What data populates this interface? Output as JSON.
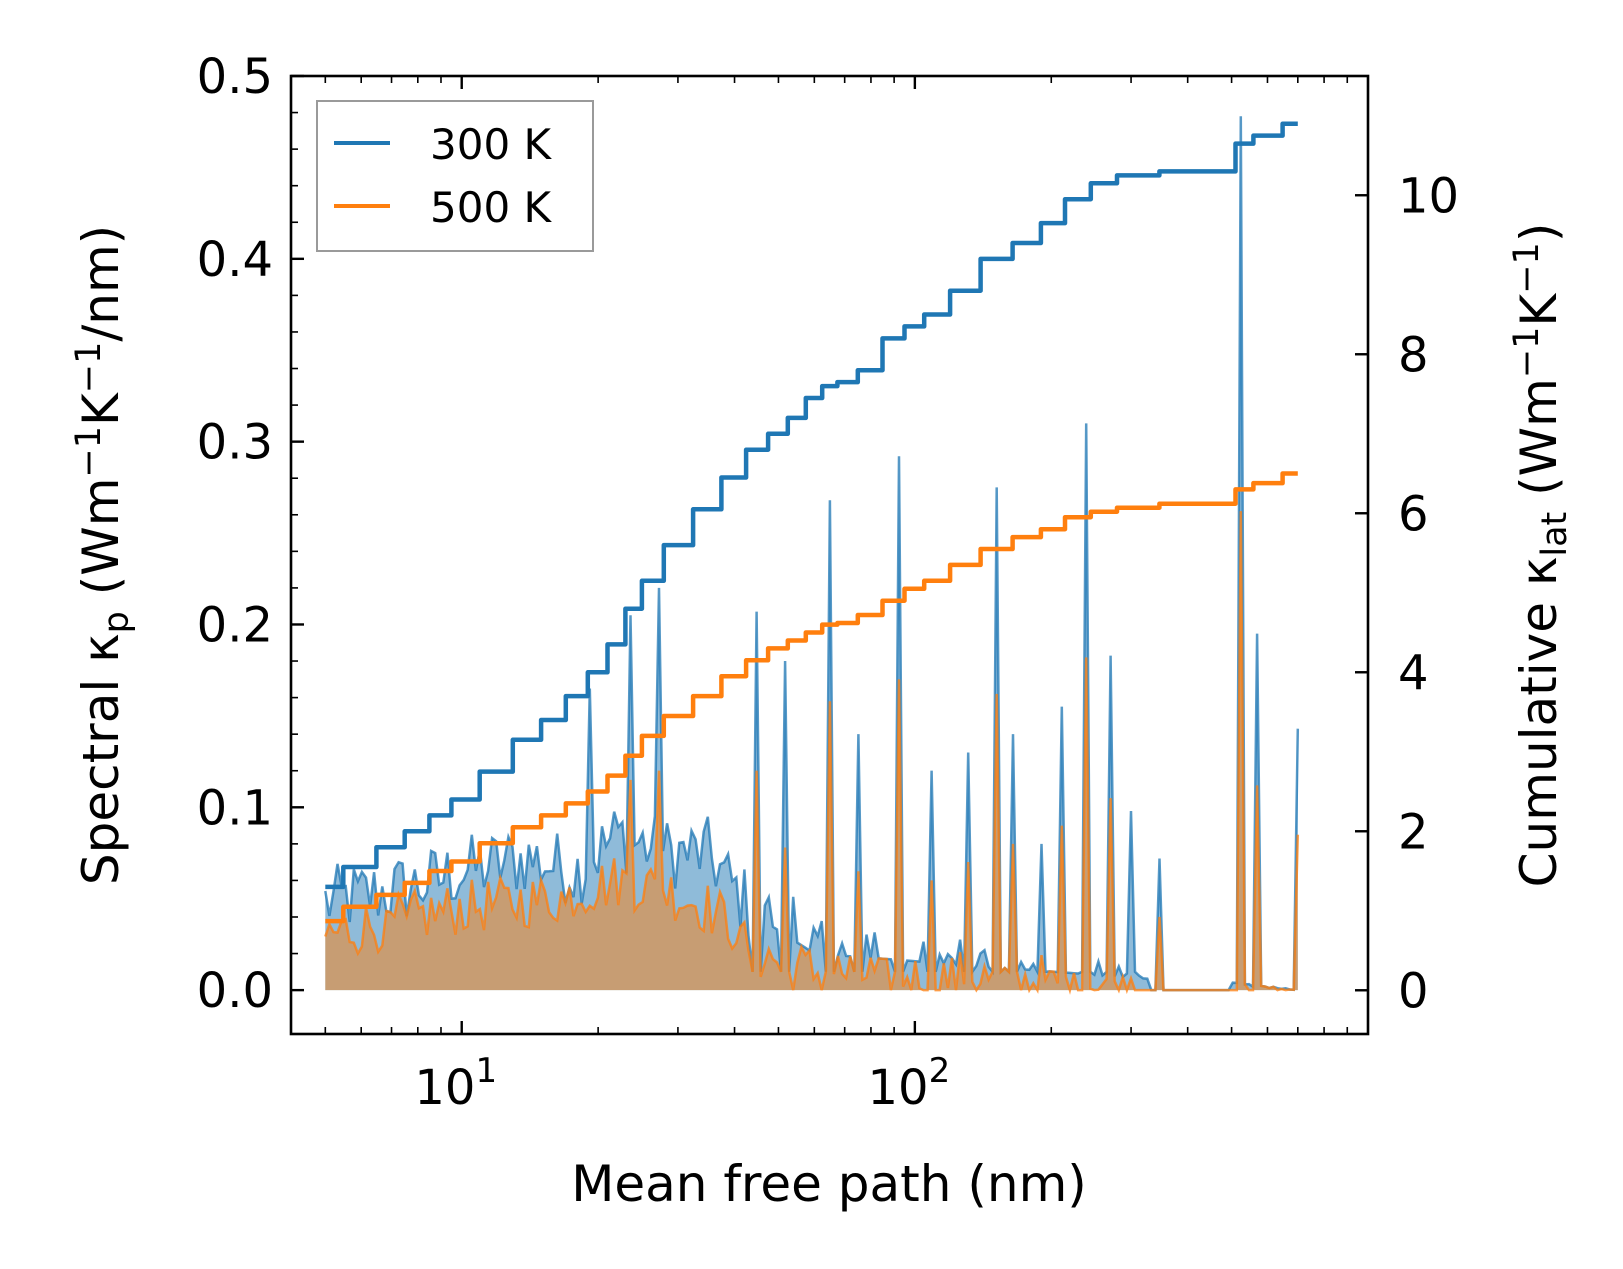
{
  "chart_data": {
    "type": "line",
    "title": "",
    "xlabel": "Mean free path (nm)",
    "ylabel_left": {
      "main": "Spectral κ",
      "sub": "p",
      "units_parts": [
        " (Wm",
        "−1",
        "K",
        "−1",
        "/nm)"
      ]
    },
    "ylabel_right": {
      "main": "Cumulative κ",
      "sub": "lat",
      "units_parts": [
        " (Wm",
        "−1",
        "K",
        "−1",
        ")"
      ]
    },
    "xscale": "log",
    "xlim": [
      4.2,
      1000
    ],
    "ylim_left": [
      -0.024,
      0.5
    ],
    "ylim_right": [
      -0.55,
      11.5
    ],
    "x_major_ticks": [
      {
        "value": 10,
        "base": "10",
        "exp": "1"
      },
      {
        "value": 100,
        "base": "10",
        "exp": "2"
      }
    ],
    "y_left_ticks": [
      {
        "value": 0.0,
        "label": "0.0"
      },
      {
        "value": 0.1,
        "label": "0.1"
      },
      {
        "value": 0.2,
        "label": "0.2"
      },
      {
        "value": 0.3,
        "label": "0.3"
      },
      {
        "value": 0.4,
        "label": "0.4"
      },
      {
        "value": 0.5,
        "label": "0.5"
      }
    ],
    "y_right_ticks": [
      {
        "value": 0,
        "label": "0"
      },
      {
        "value": 2,
        "label": "2"
      },
      {
        "value": 4,
        "label": "4"
      },
      {
        "value": 6,
        "label": "6"
      },
      {
        "value": 8,
        "label": "8"
      },
      {
        "value": 10,
        "label": "10"
      }
    ],
    "legend": {
      "position": "top-left",
      "entries": [
        {
          "label": "300 K",
          "color": "#1f77b4"
        },
        {
          "label": "500 K",
          "color": "#ff7f0e"
        }
      ]
    },
    "colors": {
      "s300": "#1f77b4",
      "s500": "#ff7f0e",
      "fill300": "rgba(31,119,180,0.5)",
      "fill500": "rgba(255,127,14,0.5)"
    },
    "cumulative": {
      "axis": "right",
      "series": [
        {
          "name": "300 K",
          "x": [
            5,
            6,
            7,
            8,
            9,
            10,
            12,
            14,
            16,
            18,
            20,
            22,
            24,
            26,
            30,
            35,
            40,
            45,
            50,
            55,
            60,
            65,
            70,
            80,
            90,
            100,
            110,
            130,
            150,
            180,
            200,
            230,
            260,
            300,
            400,
            500,
            520,
            600,
            700
          ],
          "y": [
            1.3,
            1.55,
            1.8,
            2.0,
            2.2,
            2.4,
            2.75,
            3.15,
            3.4,
            3.7,
            4.0,
            4.35,
            4.8,
            5.15,
            5.6,
            6.05,
            6.45,
            6.8,
            7.0,
            7.2,
            7.45,
            7.6,
            7.65,
            7.8,
            8.2,
            8.35,
            8.5,
            8.8,
            9.2,
            9.4,
            9.65,
            9.95,
            10.15,
            10.25,
            10.3,
            10.3,
            10.65,
            10.75,
            10.9
          ]
        },
        {
          "name": "500 K",
          "x": [
            5,
            6,
            7,
            8,
            9,
            10,
            12,
            14,
            16,
            18,
            20,
            22,
            24,
            26,
            30,
            35,
            40,
            45,
            50,
            55,
            60,
            65,
            70,
            80,
            90,
            100,
            110,
            130,
            150,
            180,
            200,
            230,
            260,
            300,
            400,
            500,
            520,
            600,
            700
          ],
          "y": [
            0.87,
            1.05,
            1.2,
            1.35,
            1.5,
            1.62,
            1.85,
            2.05,
            2.2,
            2.35,
            2.5,
            2.7,
            2.95,
            3.2,
            3.45,
            3.7,
            3.95,
            4.15,
            4.3,
            4.4,
            4.5,
            4.6,
            4.62,
            4.72,
            4.9,
            5.05,
            5.15,
            5.35,
            5.55,
            5.7,
            5.8,
            5.95,
            6.02,
            6.07,
            6.12,
            6.12,
            6.3,
            6.38,
            6.5
          ]
        }
      ]
    },
    "spectral": {
      "axis": "left",
      "note": "values estimated from figure",
      "series": [
        {
          "name": "300 K",
          "baseline_points": [
            [
              5,
              0.048
            ],
            [
              8,
              0.057
            ],
            [
              10,
              0.065
            ],
            [
              14,
              0.072
            ],
            [
              18,
              0.065
            ],
            [
              22,
              0.085
            ],
            [
              28,
              0.075
            ],
            [
              35,
              0.075
            ],
            [
              40,
              0.055
            ],
            [
              45,
              0.04
            ],
            [
              60,
              0.02
            ],
            [
              700,
              0.0
            ]
          ],
          "peaks": [
            [
              19,
              0.165
            ],
            [
              23.5,
              0.205
            ],
            [
              27,
              0.22
            ],
            [
              45,
              0.207
            ],
            [
              52,
              0.18
            ],
            [
              65,
              0.268
            ],
            [
              75,
              0.14
            ],
            [
              93,
              0.292
            ],
            [
              110,
              0.12
            ],
            [
              130,
              0.13
            ],
            [
              152,
              0.275
            ],
            [
              165,
              0.14
            ],
            [
              190,
              0.08
            ],
            [
              210,
              0.155
            ],
            [
              240,
              0.31
            ],
            [
              270,
              0.183
            ],
            [
              300,
              0.098
            ],
            [
              350,
              0.072
            ],
            [
              520,
              0.478
            ],
            [
              570,
              0.195
            ],
            [
              700,
              0.143
            ]
          ]
        },
        {
          "name": "500 K",
          "baseline_points": [
            [
              5,
              0.03
            ],
            [
              10,
              0.045
            ],
            [
              16,
              0.05
            ],
            [
              22,
              0.06
            ],
            [
              28,
              0.055
            ],
            [
              35,
              0.045
            ],
            [
              40,
              0.035
            ],
            [
              45,
              0.02
            ],
            [
              60,
              0.01
            ],
            [
              700,
              0.0
            ]
          ],
          "peaks": [
            [
              23.5,
              0.115
            ],
            [
              27,
              0.12
            ],
            [
              45,
              0.12
            ],
            [
              52,
              0.078
            ],
            [
              65,
              0.158
            ],
            [
              75,
              0.065
            ],
            [
              93,
              0.17
            ],
            [
              110,
              0.06
            ],
            [
              130,
              0.07
            ],
            [
              152,
              0.162
            ],
            [
              165,
              0.08
            ],
            [
              210,
              0.09
            ],
            [
              240,
              0.182
            ],
            [
              270,
              0.105
            ],
            [
              350,
              0.04
            ],
            [
              520,
              0.262
            ],
            [
              570,
              0.112
            ],
            [
              700,
              0.085
            ]
          ]
        }
      ]
    }
  }
}
